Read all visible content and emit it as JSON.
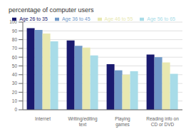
{
  "chart_data": {
    "type": "bar",
    "title": "percentage of computer users",
    "categories": [
      "Internet",
      "Writing/editing\ntext",
      "Playing\ngames",
      "Reading info on\nCD or DVD"
    ],
    "series": [
      {
        "name": "Age 26 to 35",
        "color": "#1a1a6e",
        "values": [
          93,
          79,
          52,
          63
        ]
      },
      {
        "name": "Age 36 to 45",
        "color": "#7099c8",
        "values": [
          91,
          73,
          45,
          60
        ]
      },
      {
        "name": "Age 46 to 55",
        "color": "#e8e8b0",
        "values": [
          87,
          71,
          40,
          54
        ]
      },
      {
        "name": "Age 56 to 65",
        "color": "#a8dce8",
        "values": [
          78,
          62,
          44,
          41
        ]
      }
    ],
    "ylim": [
      0,
      100
    ],
    "yticks": [
      0,
      10,
      20,
      30,
      40,
      50,
      60,
      70,
      80,
      90,
      100
    ],
    "grid": true,
    "legend": "upper right"
  }
}
